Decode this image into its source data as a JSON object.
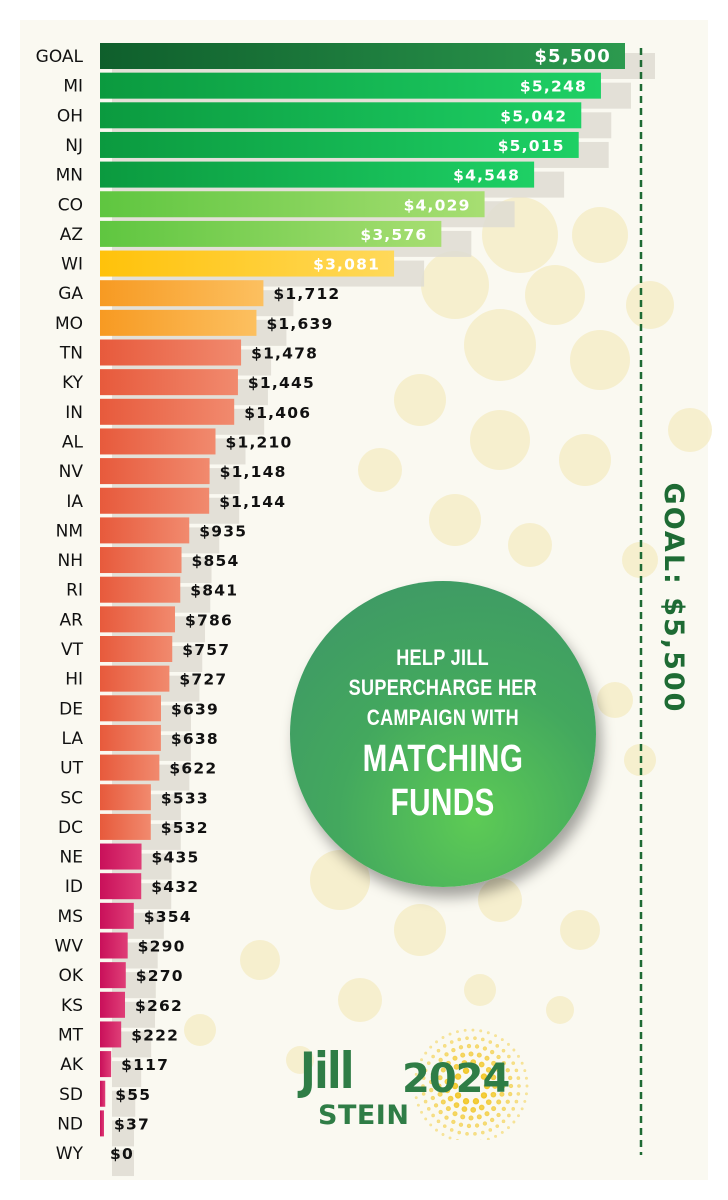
{
  "chart_data": {
    "type": "bar",
    "orientation": "horizontal",
    "categories": [
      "GOAL",
      "MI",
      "OH",
      "NJ",
      "MN",
      "CO",
      "AZ",
      "WI",
      "GA",
      "MO",
      "TN",
      "KY",
      "IN",
      "AL",
      "NV",
      "IA",
      "NM",
      "NH",
      "RI",
      "AR",
      "VT",
      "HI",
      "DE",
      "LA",
      "UT",
      "SC",
      "DC",
      "NE",
      "ID",
      "MS",
      "WV",
      "OK",
      "KS",
      "MT",
      "AK",
      "SD",
      "ND",
      "WY"
    ],
    "values": [
      5500,
      5248,
      5042,
      5015,
      4548,
      4029,
      3576,
      3081,
      1712,
      1639,
      1478,
      1445,
      1406,
      1210,
      1148,
      1144,
      935,
      854,
      841,
      786,
      757,
      727,
      639,
      638,
      622,
      533,
      532,
      435,
      432,
      354,
      290,
      270,
      262,
      222,
      117,
      55,
      37,
      0
    ],
    "value_labels": [
      "$5,500",
      "$5,248",
      "$5,042",
      "$5,015",
      "$4,548",
      "$4,029",
      "$3,576",
      "$3,081",
      "$1,712",
      "$1,639",
      "$1,478",
      "$1,445",
      "$1,406",
      "$1,210",
      "$1,148",
      "$1,144",
      "$935",
      "$854",
      "$841",
      "$786",
      "$757",
      "$727",
      "$639",
      "$638",
      "$622",
      "$533",
      "$532",
      "$435",
      "$432",
      "$354",
      "$290",
      "$270",
      "$262",
      "$222",
      "$117",
      "$55",
      "$37",
      "$0"
    ],
    "xlim": [
      0,
      5500
    ],
    "goal_line": {
      "value": 5500,
      "label": "GOAL: $5,500"
    },
    "grid": false,
    "legend": "none",
    "colors": {
      "goal": "#1f7f3c",
      "green": "#17b24e",
      "light_green": "#7dd35a",
      "yellow": "#ffcb2b",
      "orange": "#f9a838",
      "coral": "#ec6f52",
      "magenta": "#d2195f",
      "goal_text": "#1e6b34"
    }
  },
  "promo": {
    "lines": [
      "HELP JILL",
      "SUPERCHARGE HER",
      "CAMPAIGN WITH",
      "MATCHING",
      "FUNDS"
    ]
  },
  "logo": {
    "first": "Jill",
    "last": "STEIN",
    "year": "2024"
  }
}
